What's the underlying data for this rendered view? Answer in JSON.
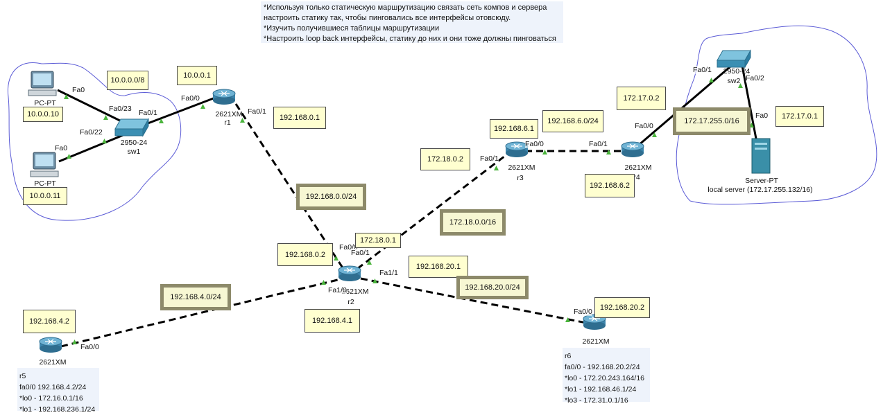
{
  "note": {
    "lines": [
      "*Используя только статическую маршрутизацию связать сеть компов и сервера",
      "настроить статику так, чтобы пинговались все интерфейсы отовсюду.",
      "*Изучить получившиеся таблицы маршрутизации",
      "*Настроить loop back интерфейсы, статику до них и они тоже должны пинговаться"
    ]
  },
  "devices": {
    "pc1": {
      "type": "PC-PT",
      "ip": "10.0.0.10"
    },
    "pc2": {
      "type": "PC-PT",
      "ip": "10.0.0.11"
    },
    "sw1": {
      "model": "2950-24",
      "name": "sw1"
    },
    "sw2": {
      "model": "2950-24",
      "name": "sw2"
    },
    "r1": {
      "model": "2621XM",
      "name": "r1"
    },
    "r2": {
      "model": "2621XM",
      "name": "r2"
    },
    "r3": {
      "model": "2621XM",
      "name": "r3"
    },
    "r4": {
      "model": "2621XM",
      "name": "r4"
    },
    "r5": {
      "model": "2621XM"
    },
    "r6": {
      "model": "2621XM"
    },
    "server": {
      "type": "Server-PT",
      "name": "local server (172.17.255.132/16)"
    }
  },
  "ports": {
    "pc1_fa0": "Fa0",
    "sw1_fa0_23": "Fa0/23",
    "sw1_fa0_22": "Fa0/22",
    "pc2_fa0": "Fa0",
    "sw1_fa0_1": "Fa0/1",
    "r1_fa0_0": "Fa0/0",
    "r1_fa0_1": "Fa0/1",
    "r2_fa0_0": "Fa0/0",
    "r2_fa0_1": "Fa0/1",
    "r2_fa1_0": "Fa1/0",
    "r2_fa1_1": "Fa1/1",
    "r3_fa0_1": "Fa0/1",
    "r3_fa0_0": "Fa0/0",
    "r4_fa0_1": "Fa0/1",
    "r4_fa0_0": "Fa0/0",
    "sw2_fa0_1": "Fa0/1",
    "sw2_fa0_2": "Fa0/2",
    "server_fa0": "Fa0",
    "r5_fa0_0": "Fa0/0",
    "r6_fa0_0": "Fa0/0"
  },
  "labels": {
    "net_10": "10.0.0.0/8",
    "r1_ip": "10.0.0.1",
    "r1_wan_ip": "192.168.0.1",
    "net_192_168_0": "192.168.0.0/24",
    "r2_ip_0": "192.168.0.2",
    "r2_ip_172": "172.18.0.1",
    "net_172_18": "172.18.0.0/16",
    "r3_ip_172": "172.18.0.2",
    "r3_ip_6": "192.168.6.1",
    "net_192_168_6": "192.168.6.0/24",
    "r4_ip_6": "192.168.6.2",
    "r4_ip_172_17": "172.17.0.2",
    "net_172_17": "172.17.255.0/16",
    "server_gw": "172.17.0.1",
    "r2_ip_20": "192.168.20.1",
    "net_192_168_20": "192.168.20.0/24",
    "r6_ip_20": "192.168.20.2",
    "net_192_168_4": "192.168.4.0/24",
    "r2_ip_4": "192.168.4.1",
    "r5_ip_4": "192.168.4.2"
  },
  "r5_info": {
    "name": "r5",
    "lines": [
      "fa0/0 192.168.4.2/24",
      "*lo0 - 172.16.0.1/16",
      "*lo1 - 192.168.236.1/24"
    ]
  },
  "r6_info": {
    "name": "r6",
    "lines": [
      "fa0/0 - 192.168.20.2/24",
      "*lo0 - 172.20.243.164/16",
      "*lo1 - 192.168.46.1/24",
      "*lo3 - 172.31.0.1/16"
    ]
  },
  "colors": {
    "cloud": "#5b5bd6",
    "link": "#000000",
    "port_up": "#4ab43c",
    "router": "#2f7aa0",
    "switch": "#4a9cbf",
    "server": "#3a8fa8",
    "label_yellow": "#ffffd0",
    "label_olive": "#8d8a6a",
    "note_bg": "#eef3fb"
  }
}
